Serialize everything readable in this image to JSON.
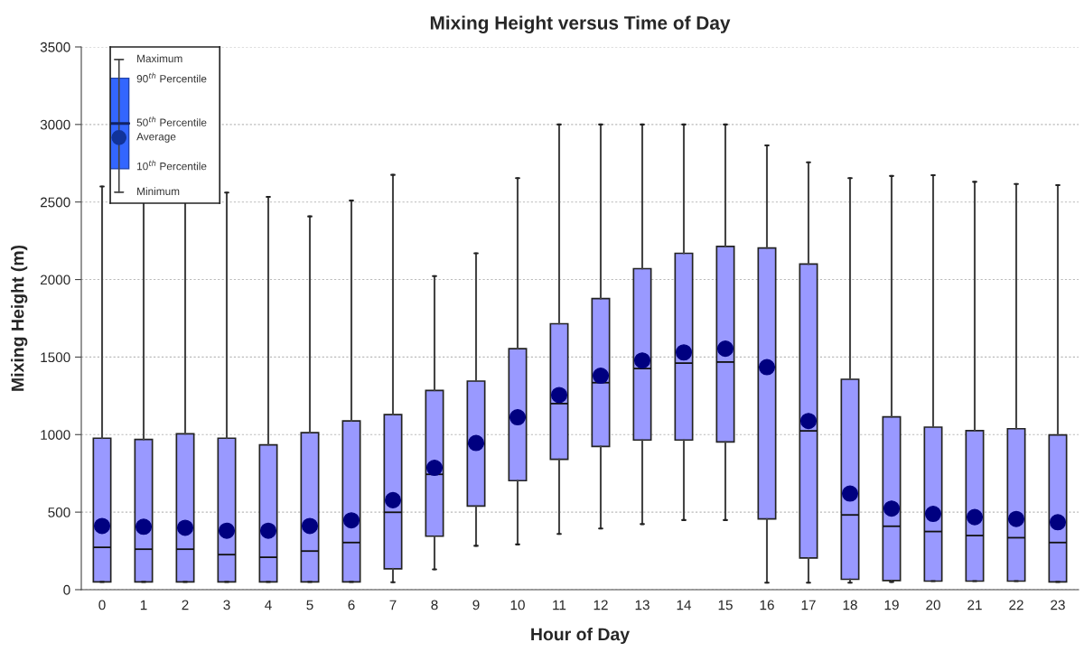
{
  "chart_data": {
    "type": "box",
    "title": "Mixing Height versus Time of Day",
    "xlabel": "Hour of Day",
    "ylabel": "Mixing Height (m)",
    "categories": [
      "0",
      "1",
      "2",
      "3",
      "4",
      "5",
      "6",
      "7",
      "8",
      "9",
      "10",
      "11",
      "12",
      "13",
      "14",
      "15",
      "16",
      "17",
      "18",
      "19",
      "20",
      "21",
      "22",
      "23"
    ],
    "ylim": [
      0,
      3500
    ],
    "yticks": [
      0,
      500,
      1000,
      1500,
      2000,
      2500,
      3000,
      3500
    ],
    "grid": "y",
    "annotations": [
      "Maximum",
      "90$^{th}$ Percentile",
      "50$^{th}$ Percentile",
      "Average",
      "10$^{th}$ Percentile",
      "Minimum"
    ],
    "series": [
      {
        "color": "#9999ff",
        "boxes": [
          {
            "low": 50,
            "q1": 50,
            "median": 273,
            "q3": 977,
            "high": 2600,
            "mean": 411
          },
          {
            "low": 50,
            "q1": 50,
            "median": 261,
            "q3": 969,
            "high": 2600,
            "mean": 406
          },
          {
            "low": 50,
            "q1": 50,
            "median": 261,
            "q3": 1005,
            "high": 2600,
            "mean": 399
          },
          {
            "low": 50,
            "q1": 50,
            "median": 226,
            "q3": 977,
            "high": 2561,
            "mean": 380
          },
          {
            "low": 50,
            "q1": 50,
            "median": 209,
            "q3": 934,
            "high": 2533,
            "mean": 380
          },
          {
            "low": 50,
            "q1": 50,
            "median": 249,
            "q3": 1012,
            "high": 2407,
            "mean": 411
          },
          {
            "low": 50,
            "q1": 50,
            "median": 304,
            "q3": 1088,
            "high": 2509,
            "mean": 447
          },
          {
            "low": 48,
            "q1": 135,
            "median": 499,
            "q3": 1129,
            "high": 2675,
            "mean": 577
          },
          {
            "low": 131,
            "q1": 345,
            "median": 744,
            "q3": 1285,
            "high": 2022,
            "mean": 786
          },
          {
            "low": 283,
            "q1": 539,
            "median": 940,
            "q3": 1345,
            "high": 2169,
            "mean": 946
          },
          {
            "low": 292,
            "q1": 703,
            "median": 1110,
            "q3": 1554,
            "high": 2654,
            "mean": 1112
          },
          {
            "low": 359,
            "q1": 841,
            "median": 1200,
            "q3": 1715,
            "high": 3000,
            "mean": 1255
          },
          {
            "low": 394,
            "q1": 924,
            "median": 1335,
            "q3": 1877,
            "high": 3000,
            "mean": 1380
          },
          {
            "low": 423,
            "q1": 965,
            "median": 1426,
            "q3": 2070,
            "high": 3000,
            "mean": 1478
          },
          {
            "low": 449,
            "q1": 965,
            "median": 1461,
            "q3": 2169,
            "high": 3000,
            "mean": 1530
          },
          {
            "low": 449,
            "q1": 953,
            "median": 1468,
            "q3": 2214,
            "high": 3000,
            "mean": 1554
          },
          {
            "low": 45,
            "q1": 456,
            "median": 1435,
            "q3": 2203,
            "high": 2865,
            "mean": 1435
          },
          {
            "low": 45,
            "q1": 204,
            "median": 1024,
            "q3": 2100,
            "high": 2756,
            "mean": 1088
          },
          {
            "low": 45,
            "q1": 67,
            "median": 482,
            "q3": 1357,
            "high": 2654,
            "mean": 620
          },
          {
            "low": 50,
            "q1": 59,
            "median": 409,
            "q3": 1114,
            "high": 2668,
            "mean": 523
          },
          {
            "low": 55,
            "q1": 55,
            "median": 375,
            "q3": 1048,
            "high": 2673,
            "mean": 489
          },
          {
            "low": 55,
            "q1": 55,
            "median": 349,
            "q3": 1026,
            "high": 2630,
            "mean": 468
          },
          {
            "low": 55,
            "q1": 55,
            "median": 335,
            "q3": 1038,
            "high": 2616,
            "mean": 456
          },
          {
            "low": 50,
            "q1": 50,
            "median": 304,
            "q3": 998,
            "high": 2609,
            "mean": 435
          }
        ]
      }
    ]
  }
}
